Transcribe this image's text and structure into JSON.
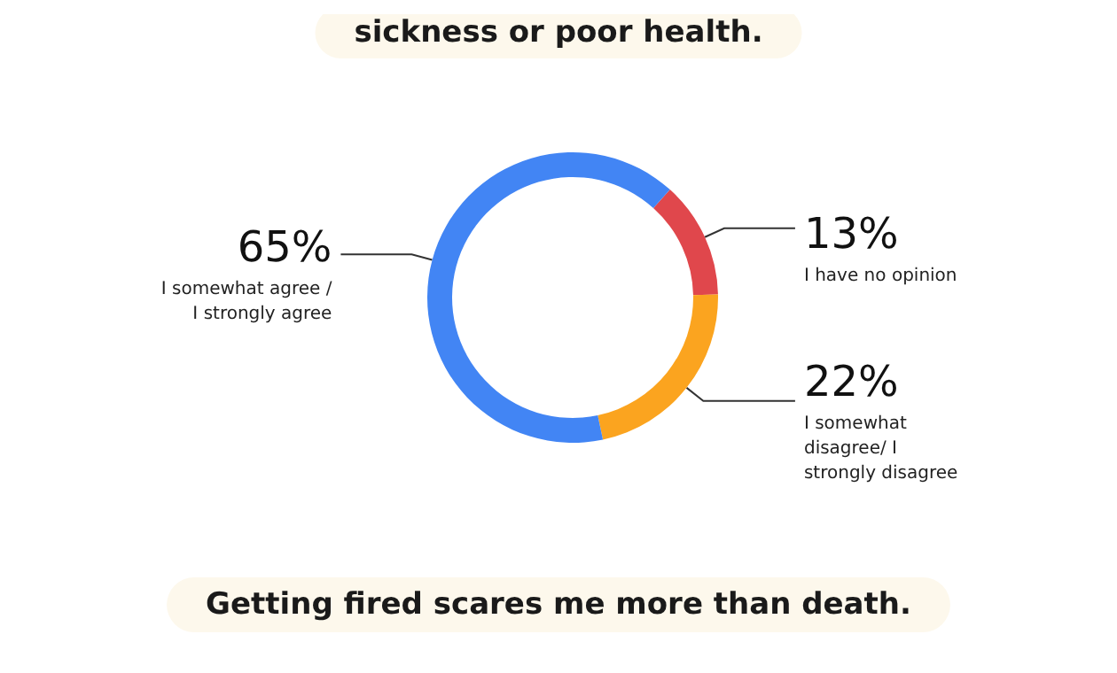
{
  "chart_data": {
    "type": "donut",
    "title": "sickness or poor health.",
    "categories": [
      "I have no opinion",
      "I somewhat disagree/ I strongly disagree",
      "I somewhat agree / I strongly agree"
    ],
    "values": [
      13,
      22,
      65
    ],
    "colors": [
      "#e0474c",
      "#fba41f",
      "#4285f4"
    ],
    "value_labels": [
      "13%",
      "22%",
      "65%"
    ],
    "legend": false,
    "annotations": [
      "Getting fired scares me more than death."
    ]
  }
}
